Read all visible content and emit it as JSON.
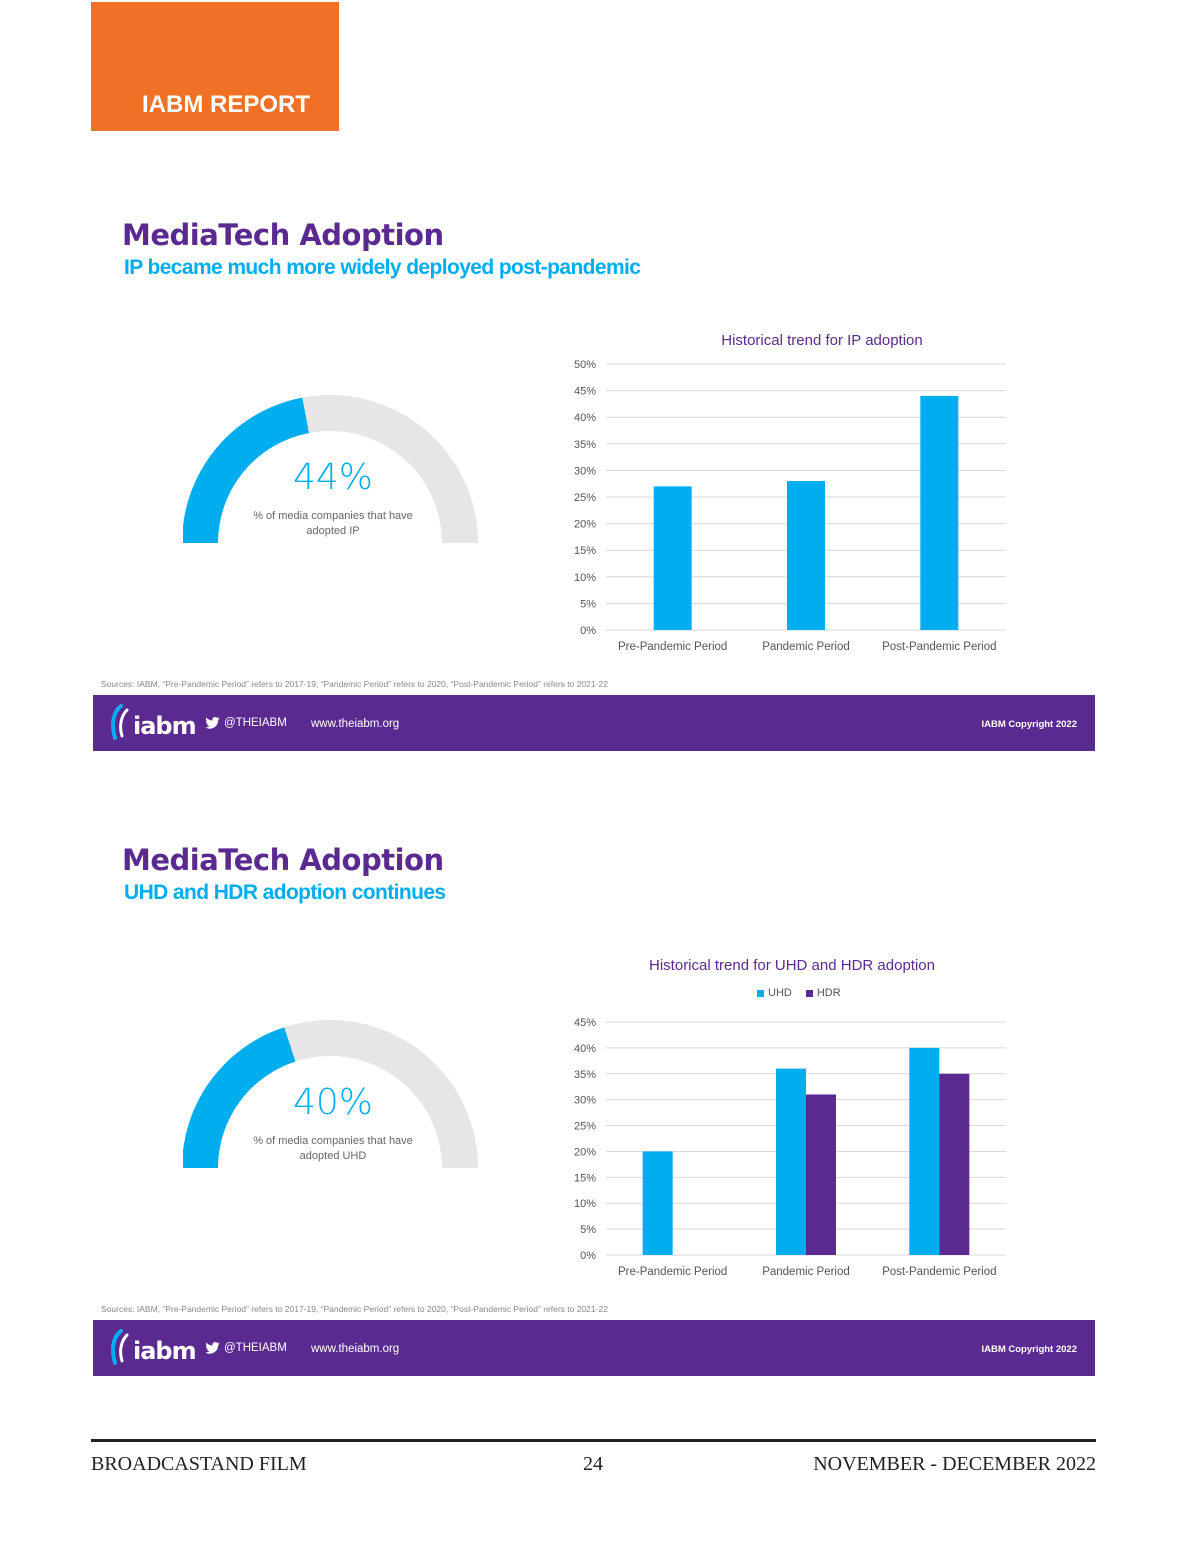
{
  "header": {
    "tag": "IABM REPORT"
  },
  "slides": [
    {
      "title": "MediaTech Adoption",
      "subtitle": "IP became much more widely deployed post-pandemic",
      "gauge": {
        "value_text": "44%",
        "fraction": 0.44,
        "caption": "% of media companies that have adopted IP"
      },
      "chart_title": "Historical trend for IP adoption",
      "sources": "Sources: IABM, “Pre-Pandemic Period” refers to 2017-19, “Pandemic Period” refers to 2020, “Post-Pandemic Period” refers to 2021-22",
      "footer": {
        "logo": "iabm",
        "twitter": "@THEIABM",
        "website": "www.theiabm.org",
        "copyright": "IABM Copyright 2022"
      }
    },
    {
      "title": "MediaTech Adoption",
      "subtitle": "UHD and HDR adoption continues",
      "gauge": {
        "value_text": "40%",
        "fraction": 0.4,
        "caption": "% of media companies that have adopted UHD"
      },
      "chart_title": "Historical trend for UHD and HDR adoption",
      "legend": [
        "UHD",
        "HDR"
      ],
      "sources": "Sources: IABM, “Pre-Pandemic Period” refers to 2017-19, “Pandemic Period” refers to 2020, “Post-Pandemic Period” refers to 2021-22",
      "footer": {
        "logo": "iabm",
        "twitter": "@THEIABM",
        "website": "www.theiabm.org",
        "copyright": "IABM Copyright 2022"
      }
    }
  ],
  "colors": {
    "accent_blue": "#00adef",
    "accent_purple": "#5b2a91",
    "tag_orange": "#f07025",
    "gauge_track": "#e6e6e6"
  },
  "icons": {
    "twitter": "twitter-bird-icon",
    "logo": "iabm-logo-icon"
  },
  "chart_data": [
    {
      "type": "bar",
      "title": "Historical trend for IP adoption",
      "categories": [
        "Pre-Pandemic Period",
        "Pandemic Period",
        "Post-Pandemic Period"
      ],
      "series": [
        {
          "values": [
            27,
            28,
            44
          ]
        }
      ],
      "ylim": [
        0,
        50
      ],
      "yticks": [
        0,
        5,
        10,
        15,
        20,
        25,
        30,
        35,
        40,
        45,
        50
      ],
      "tick_format": "%",
      "grid": true
    },
    {
      "type": "bar",
      "title": "Historical trend for UHD and HDR adoption",
      "categories": [
        "Pre-Pandemic Period",
        "Pandemic Period",
        "Post-Pandemic Period"
      ],
      "series": [
        {
          "name": "UHD",
          "values": [
            20,
            36,
            40
          ]
        },
        {
          "name": "HDR",
          "values": [
            null,
            31,
            35
          ]
        }
      ],
      "ylim": [
        0,
        45
      ],
      "yticks": [
        0,
        5,
        10,
        15,
        20,
        25,
        30,
        35,
        40,
        45
      ],
      "tick_format": "%",
      "legend": "top-center",
      "grid": true
    }
  ],
  "page_footer": {
    "left": "BROADCASTAND FILM",
    "center": "24",
    "right": "NOVEMBER - DECEMBER 2022"
  }
}
